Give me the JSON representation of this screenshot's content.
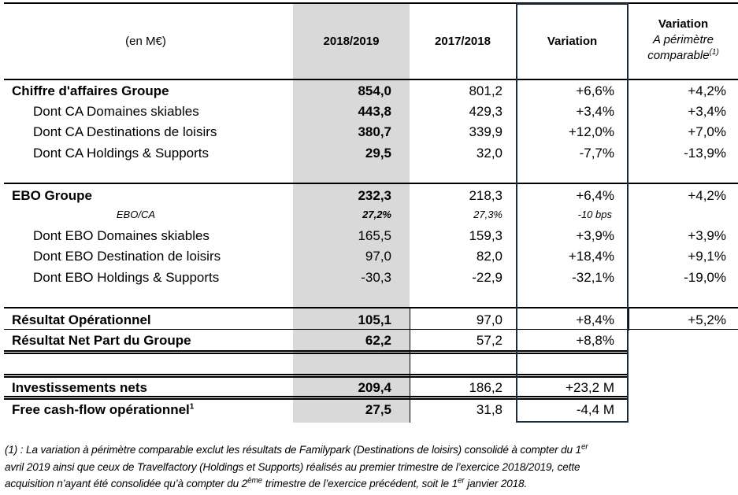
{
  "header": {
    "unit": "(en M€)",
    "col1": "2018/2019",
    "col2": "2017/2018",
    "col3": "Variation",
    "col4_title": "Variation",
    "col4_sub1": "A périmètre",
    "col4_sub2": "comparable",
    "col4_note": "(1)"
  },
  "rows": [
    {
      "label": "Chiffre d'affaires Groupe",
      "v1": "854,0",
      "v2": "801,2",
      "var": "+6,6%",
      "varc": "+4,2%"
    },
    {
      "label": "Dont CA Domaines skiables",
      "v1": "443,8",
      "v2": "429,3",
      "var": "+3,4%",
      "varc": "+3,4%"
    },
    {
      "label": "Dont CA Destinations de loisirs",
      "v1": "380,7",
      "v2": "339,9",
      "var": "+12,0%",
      "varc": "+7,0%"
    },
    {
      "label": "Dont CA Holdings & Supports",
      "v1": "29,5",
      "v2": "32,0",
      "var": "-7,7%",
      "varc": "-13,9%"
    },
    {
      "label": "EBO Groupe",
      "v1": "232,3",
      "v2": "218,3",
      "var": "+6,4%",
      "varc": "+4,2%"
    },
    {
      "label": "EBO/CA",
      "v1": "27,2%",
      "v2": "27,3%",
      "var": "-10 bps"
    },
    {
      "label": "Dont EBO Domaines skiables",
      "v1": "165,5",
      "v2": "159,3",
      "var": "+3,9%",
      "varc": "+3,9%"
    },
    {
      "label": "Dont EBO Destination de loisirs",
      "v1": "97,0",
      "v2": "82,0",
      "var": "+18,4%",
      "varc": "+9,1%"
    },
    {
      "label": "Dont EBO Holdings & Supports",
      "v1": "-30,3",
      "v2": "-22,9",
      "var": "-32,1%",
      "varc": "-19,0%"
    },
    {
      "label": "Résultat Opérationnel",
      "v1": "105,1",
      "v2": "97,0",
      "var": "+8,4%",
      "varc": "+5,2%"
    },
    {
      "label": "Résultat Net Part du Groupe",
      "v1": "62,2",
      "v2": "57,2",
      "var": "+8,8%"
    },
    {
      "label": "Investissements nets",
      "v1": "209,4",
      "v2": "186,2",
      "var": "+23,2 M"
    },
    {
      "label": "Free cash-flow opérationnel",
      "note": "1",
      "v1": "27,5",
      "v2": "31,8",
      "var": "-4,4 M"
    }
  ],
  "footnote": {
    "l1": "(1) : La variation à périmètre comparable exclut les résultats de Familypark (Destinations de loisirs) consolidé à compter du 1",
    "l1_sup": "er",
    "l2": "avril 2019 ainsi que ceux de Travelfactory (Holdings et Supports) réalisés au premier trimestre de l’exercice 2018/2019, cette",
    "l3a": "acquisition n’ayant été consolidée qu’à compter du 2",
    "l3_sup1": "ème",
    "l3b": " trimestre de l’exercice précédent, soit le 1",
    "l3_sup2": "er",
    "l3c": " janvier 2018."
  }
}
